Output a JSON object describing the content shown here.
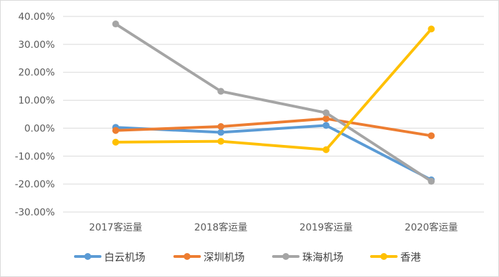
{
  "chart_data": {
    "type": "line",
    "title": "",
    "xlabel": "",
    "ylabel": "",
    "categories": [
      "2017客运量",
      "2018客运量",
      "2019客运量",
      "2020客运量"
    ],
    "ylim": [
      -30,
      40
    ],
    "ytick_step": 10,
    "ytick_labels": [
      "-30.00%",
      "-20.00%",
      "-10.00%",
      "0.00%",
      "10.00%",
      "20.00%",
      "30.00%",
      "40.00%"
    ],
    "grid": "horizontal",
    "legend_position": "bottom",
    "series": [
      {
        "name": "白云机场",
        "color": "#5b9bd5",
        "values": [
          0.3,
          -1.5,
          1.0,
          -18.5
        ]
      },
      {
        "name": "深圳机场",
        "color": "#ed7d31",
        "values": [
          -0.8,
          0.6,
          3.4,
          -2.7
        ]
      },
      {
        "name": "珠海机场",
        "color": "#a5a5a5",
        "values": [
          37.3,
          13.2,
          5.5,
          -19.0
        ]
      },
      {
        "name": "香港",
        "color": "#ffc000",
        "values": [
          -5.0,
          -4.7,
          -7.7,
          35.5
        ]
      }
    ]
  }
}
